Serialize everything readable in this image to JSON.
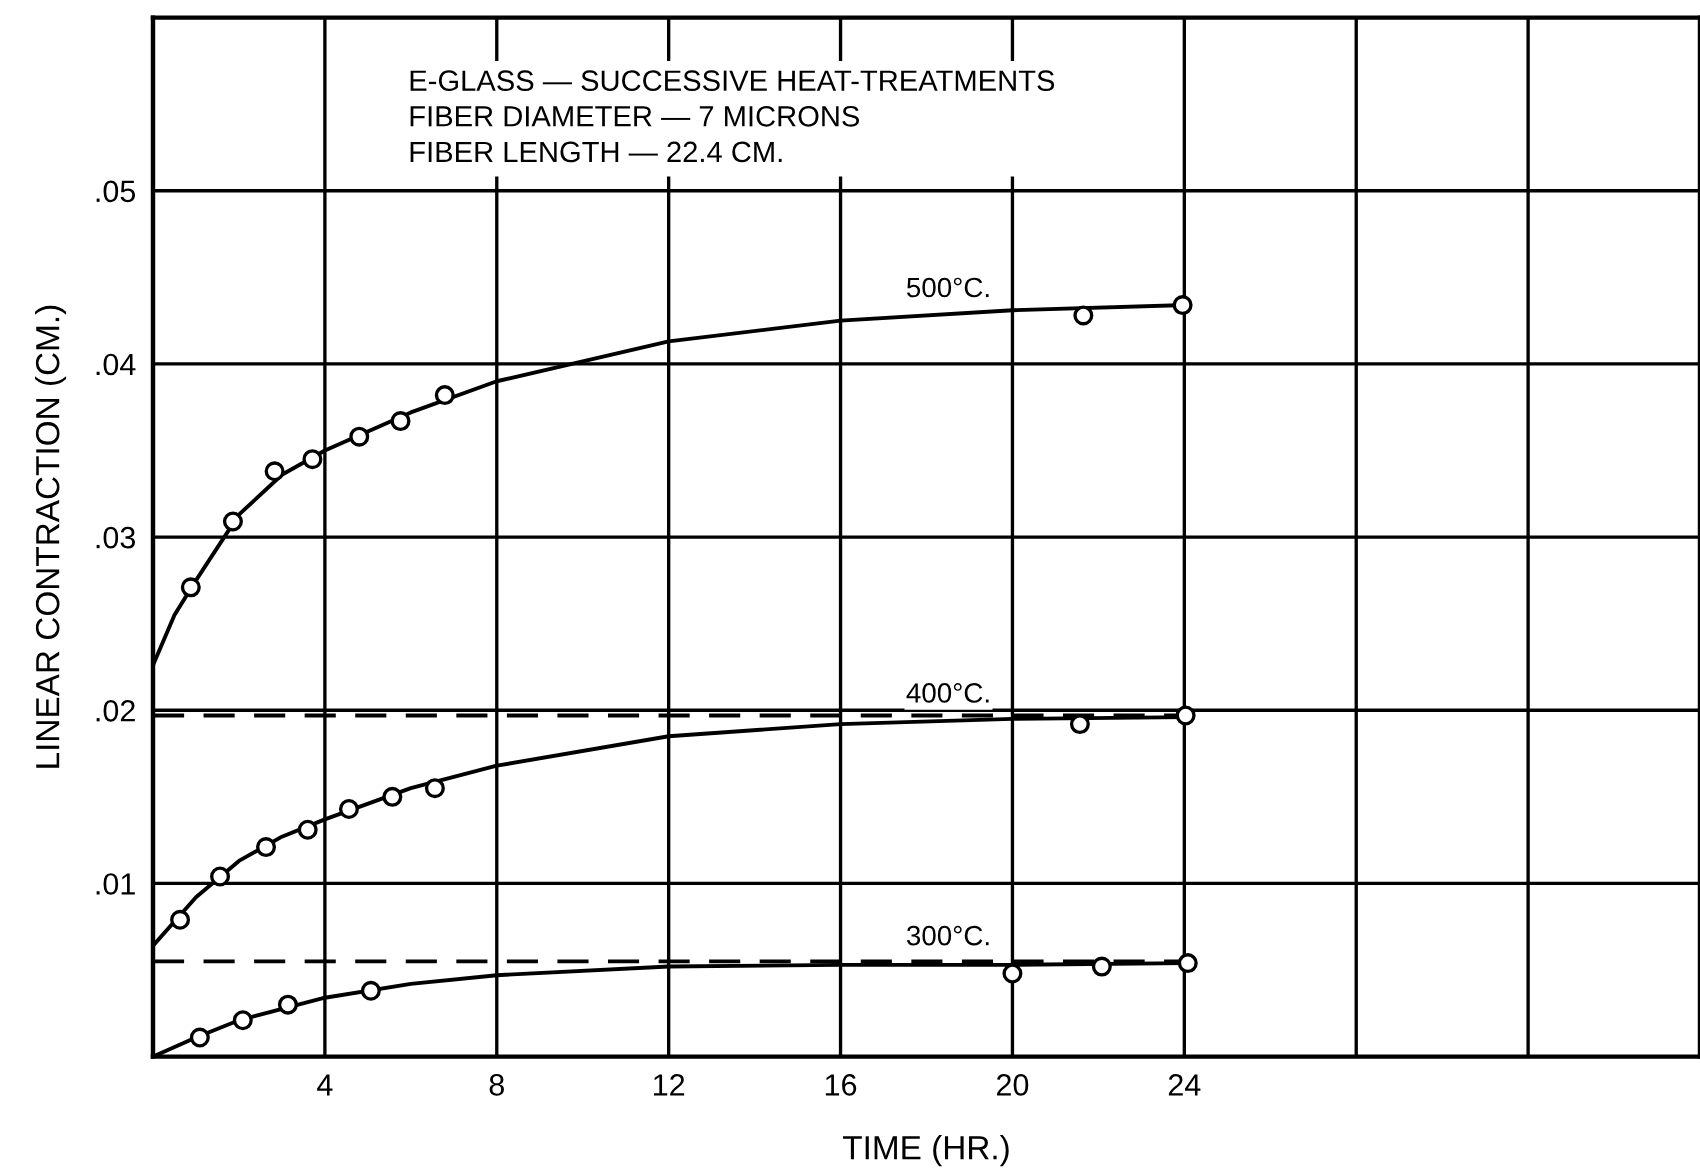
{
  "chart_data": {
    "type": "scatter",
    "xlabel": "TIME (HR.)",
    "ylabel": "LINEAR CONTRACTION (CM.)",
    "annotations": [
      "E-GLASS — SUCCESSIVE HEAT-TREATMENTS\nFIBER DIAMETER — 7 MICRONS\nFIBER LENGTH — 22.4 CM."
    ],
    "series": [
      {
        "type": "line",
        "name": "500°C.",
        "color": "#000000",
        "marker": "none",
        "x": [
          0,
          0.5,
          1,
          2,
          3,
          4,
          6,
          8,
          12,
          16,
          20,
          24
        ],
        "values": [
          0.0226,
          0.0255,
          0.0275,
          0.0313,
          0.0336,
          0.035,
          0.0372,
          0.039,
          0.0413,
          0.0425,
          0.0431,
          0.0434
        ]
      },
      {
        "color": "#000000",
        "marker": "circle",
        "x": [
          0.88,
          1.86,
          2.83,
          3.71,
          4.8,
          5.76,
          6.79,
          21.65,
          23.96
        ],
        "values": [
          0.0271,
          0.0309,
          0.0338,
          0.0345,
          0.0358,
          0.0367,
          0.0382,
          0.0428,
          0.0434
        ]
      },
      {
        "type": "line",
        "name": "400°C.",
        "color": "#000000",
        "marker": "none",
        "x": [
          0,
          1,
          2,
          3,
          4,
          6,
          8,
          12,
          16,
          20,
          24
        ],
        "values": [
          0.0064,
          0.0092,
          0.0113,
          0.0127,
          0.0137,
          0.0155,
          0.0168,
          0.0185,
          0.0192,
          0.0195,
          0.0196
        ]
      },
      {
        "color": "#000000",
        "marker": "circle",
        "x": [
          0.63,
          1.56,
          2.63,
          3.6,
          4.56,
          5.57,
          6.56,
          21.57,
          24.03
        ],
        "values": [
          0.0079,
          0.0104,
          0.0121,
          0.0131,
          0.0143,
          0.015,
          0.0155,
          0.0192,
          0.0197
        ]
      },
      {
        "type": "line",
        "name": "300°C.",
        "color": "#000000",
        "marker": "none",
        "x": [
          0,
          1,
          2,
          4,
          6,
          8,
          12,
          16,
          20,
          24
        ],
        "values": [
          0,
          0.0011,
          0.0021,
          0.0034,
          0.0042,
          0.0047,
          0.0052,
          0.0053,
          0.0053,
          0.0054
        ]
      },
      {
        "color": "#000000",
        "marker": "circle",
        "x": [
          1.09,
          2.09,
          3.14,
          5.07,
          20,
          22.08,
          24.08
        ],
        "values": [
          0.0011,
          0.0021,
          0.003,
          0.0038,
          0.0048,
          0.0052,
          0.0054
        ]
      }
    ],
    "ref_lines": [
      {
        "axis": "y",
        "value": 0.0197,
        "color": "#000000",
        "line_style": "dashed"
      },
      {
        "axis": "y",
        "value": 0.0055,
        "color": "#000000",
        "line_style": "dashed"
      }
    ],
    "xlim": [
      0,
      36
    ],
    "ylim": [
      0,
      0.06
    ],
    "xticks": [
      4,
      8,
      12,
      16,
      20,
      24,
      {
        "value": 28,
        "label": null
      },
      {
        "value": 32,
        "label": null
      }
    ],
    "yticks": [
      {
        "value": 0.01,
        "label": ".01"
      },
      {
        "value": 0.02,
        "label": ".02"
      },
      {
        "value": 0.03,
        "label": ".03"
      },
      {
        "value": 0.04,
        "label": ".04"
      },
      {
        "value": 0.05,
        "label": ".05"
      }
    ],
    "grid": true,
    "legend": false
  }
}
